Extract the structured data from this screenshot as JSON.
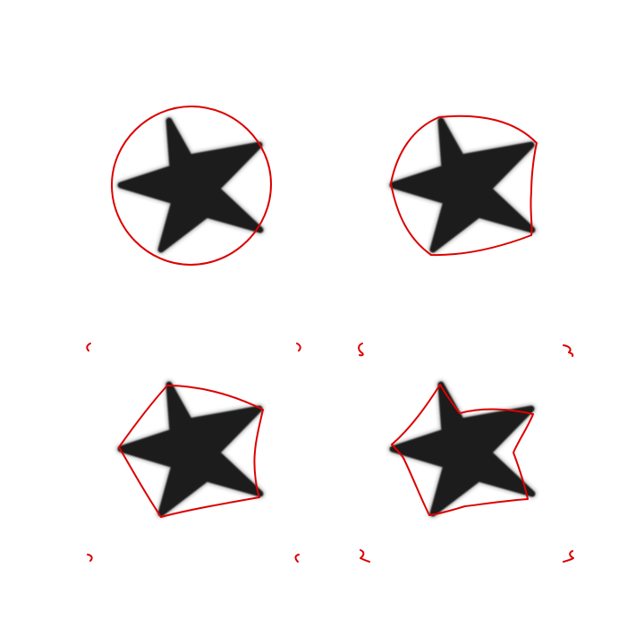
{
  "figure": {
    "background": "#ffffff",
    "contour_color": "#dd0000",
    "star_color": "#1c1c1c",
    "star_shadow_color": "#7a7a7a"
  },
  "panels": [
    {
      "id": "panel-1",
      "contour_stage": "initial-circle"
    },
    {
      "id": "panel-2",
      "contour_stage": "evolved-1"
    },
    {
      "id": "panel-3",
      "contour_stage": "evolved-2"
    },
    {
      "id": "panel-4",
      "contour_stage": "evolved-3"
    }
  ]
}
